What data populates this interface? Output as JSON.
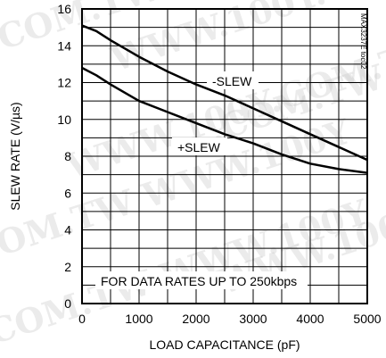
{
  "chart_data": {
    "type": "line",
    "title": "",
    "xlabel": "LOAD CAPACITANCE (pF)",
    "ylabel": "SLEW RATE (V/µs)",
    "xlim": [
      0,
      5000
    ],
    "ylim": [
      0,
      16
    ],
    "x_ticks": [
      0,
      1000,
      2000,
      3000,
      4000,
      5000
    ],
    "x_tick_labels": [
      "0",
      "1000",
      "2000",
      "3000",
      "4000",
      "5000"
    ],
    "y_ticks": [
      0,
      2,
      4,
      6,
      8,
      10,
      12,
      14,
      16
    ],
    "y_tick_labels": [
      "0",
      "2",
      "4",
      "6",
      "8",
      "10",
      "12",
      "14",
      "16"
    ],
    "grid": true,
    "annotation": "FOR DATA RATES UP TO 250kbps",
    "part_number": "MAX3237E toc02",
    "series": [
      {
        "name": "-SLEW",
        "x": [
          0,
          250,
          500,
          1000,
          1500,
          2000,
          2500,
          3000,
          3500,
          4000,
          4500,
          5000
        ],
        "y": [
          15.1,
          14.8,
          14.3,
          13.4,
          12.6,
          11.9,
          11.3,
          10.6,
          9.9,
          9.2,
          8.5,
          7.8
        ]
      },
      {
        "name": "+SLEW",
        "x": [
          0,
          250,
          500,
          1000,
          1500,
          2000,
          2500,
          3000,
          3500,
          4000,
          4500,
          5000
        ],
        "y": [
          12.8,
          12.4,
          11.9,
          11.0,
          10.4,
          9.8,
          9.2,
          8.7,
          8.1,
          7.6,
          7.3,
          7.1
        ]
      }
    ]
  }
}
